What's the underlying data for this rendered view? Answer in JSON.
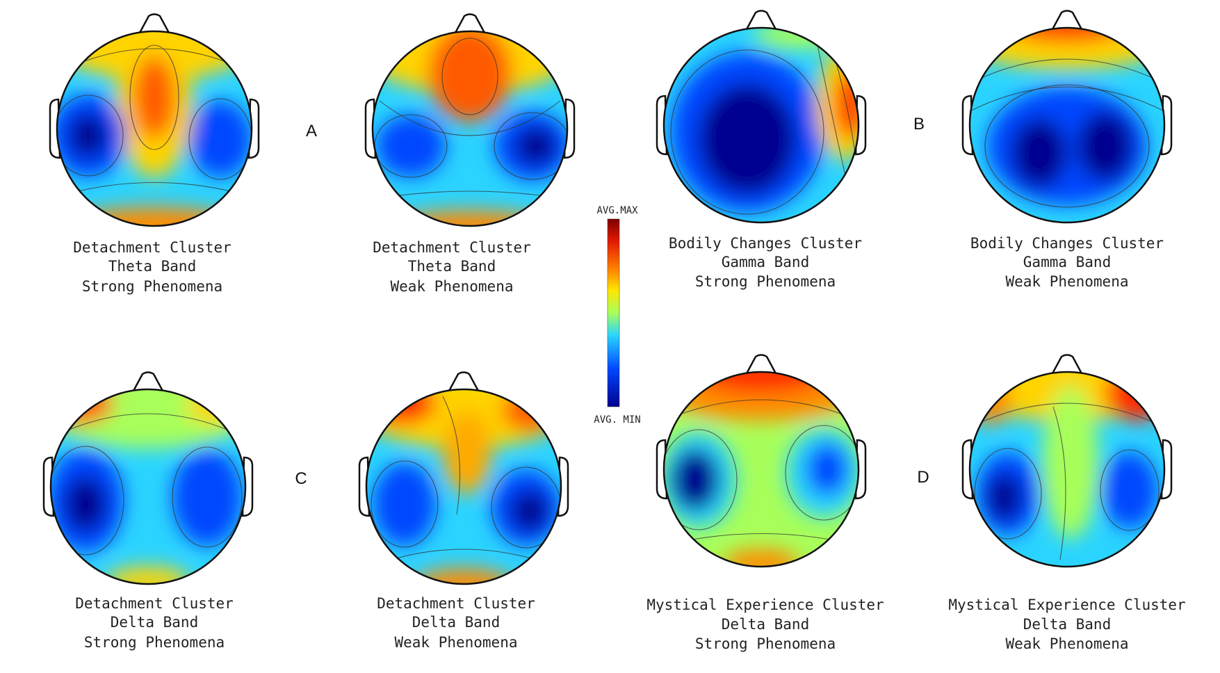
{
  "colors": {
    "scale_max": "#7f0000",
    "scale_high": "#ff2a00",
    "scale_mid_high": "#ffd400",
    "scale_mid": "#a8ff5a",
    "scale_mid_low": "#2ad4ff",
    "scale_low": "#0047ff",
    "scale_min": "#00008f"
  },
  "color_scale": {
    "max_label": "AVG.MAX",
    "min_label": "AVG. MIN"
  },
  "panel_letters": [
    "A",
    "B",
    "C",
    "D"
  ],
  "maps": [
    {
      "line1": "Detachment Cluster",
      "line2": "Theta Band",
      "line3": "Strong Phenomena"
    },
    {
      "line1": "Detachment Cluster",
      "line2": "Theta Band",
      "line3": "Weak Phenomena"
    },
    {
      "line1": "Bodily Changes Cluster",
      "line2": "Gamma Band",
      "line3": "Strong Phenomena"
    },
    {
      "line1": "Bodily Changes Cluster",
      "line2": "Gamma Band",
      "line3": "Weak Phenomena"
    },
    {
      "line1": "Detachment Cluster",
      "line2": "Delta Band",
      "line3": "Strong Phenomena"
    },
    {
      "line1": "Detachment Cluster",
      "line2": "Delta Band",
      "line3": "Weak Phenomena"
    },
    {
      "line1": "Mystical Experience Cluster",
      "line2": "Delta Band",
      "line3": "Strong Phenomena"
    },
    {
      "line1": "Mystical Experience Cluster",
      "line2": "Delta Band",
      "line3": "Weak Phenomena"
    }
  ]
}
